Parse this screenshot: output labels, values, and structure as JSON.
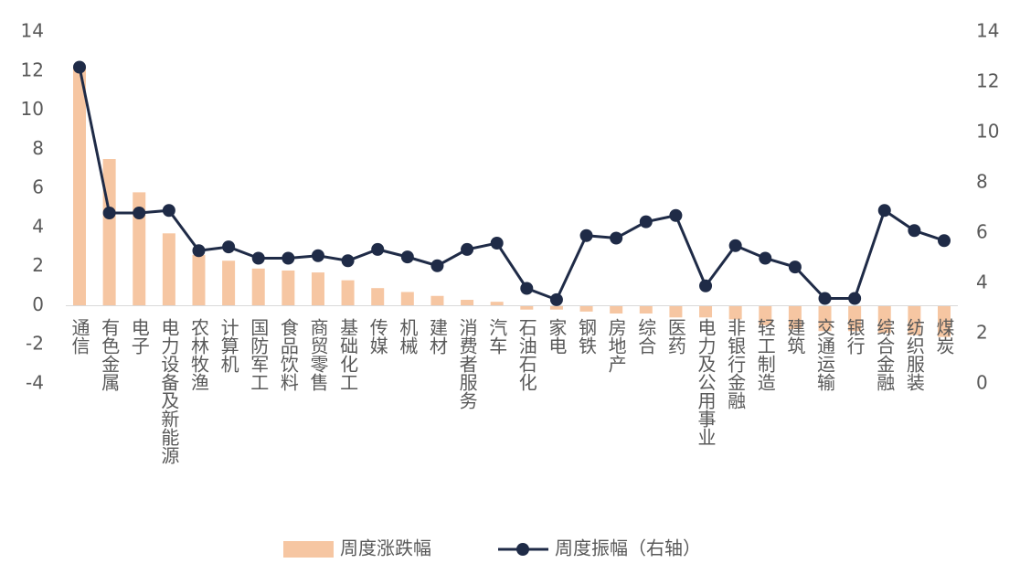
{
  "chart_data": {
    "type": "bar-line",
    "categories": [
      "通信",
      "有色金属",
      "电子",
      "电力设备及新能源",
      "农林牧渔",
      "计算机",
      "国防军工",
      "食品饮料",
      "商贸零售",
      "基础化工",
      "传媒",
      "机械",
      "建材",
      "消费者服务",
      "汽车",
      "石油石化",
      "家电",
      "钢铁",
      "房地产",
      "综合",
      "医药",
      "电力及公用事业",
      "非银行金融",
      "轻工制造",
      "建筑",
      "交通运输",
      "银行",
      "综合金融",
      "纺织服装",
      "煤炭"
    ],
    "series": [
      {
        "name": "周度涨跌幅",
        "type": "bar",
        "color": "#f6c6a2",
        "values": [
          12.2,
          7.5,
          5.8,
          3.7,
          2.6,
          2.3,
          1.9,
          1.8,
          1.7,
          1.3,
          0.9,
          0.7,
          0.5,
          0.3,
          0.2,
          -0.2,
          -0.2,
          -0.3,
          -0.4,
          -0.4,
          -0.6,
          -0.6,
          -0.7,
          -1.0,
          -1.2,
          -1.3,
          -1.3,
          -1.4,
          -1.5,
          -1.6
        ]
      },
      {
        "name": "周度振幅（右轴）",
        "type": "line",
        "axis": "y2",
        "color": "#1f2b47",
        "values": [
          12.6,
          6.8,
          6.8,
          6.9,
          5.3,
          5.45,
          5.0,
          5.0,
          5.1,
          4.9,
          5.35,
          5.05,
          4.7,
          5.35,
          5.6,
          3.8,
          3.35,
          5.9,
          5.8,
          6.45,
          6.7,
          3.9,
          5.5,
          5.0,
          4.65,
          3.4,
          3.4,
          6.9,
          6.1,
          5.7
        ]
      }
    ],
    "ylim": [
      -4,
      14
    ],
    "yticks": [
      -4,
      -2,
      0,
      2,
      4,
      6,
      8,
      10,
      12,
      14
    ],
    "y2lim": [
      0,
      14
    ],
    "y2ticks": [
      0,
      2,
      4,
      6,
      8,
      10,
      12,
      14
    ],
    "legend": "bottom"
  }
}
